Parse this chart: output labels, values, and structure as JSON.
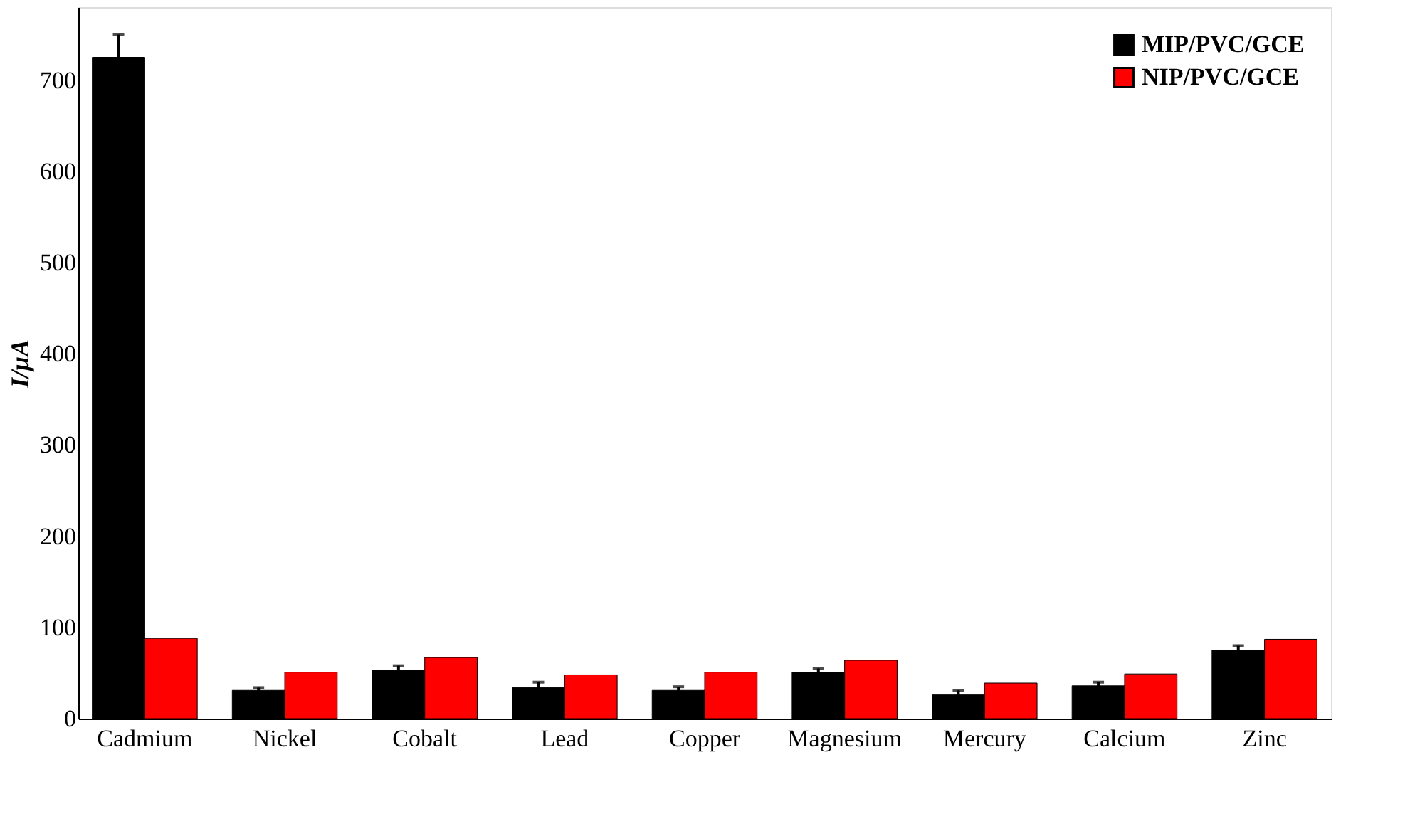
{
  "chart_data": {
    "type": "bar",
    "ylabel": "I/μA",
    "categories": [
      "Cadmium",
      "Nickel",
      "Cobalt",
      "Lead",
      "Copper",
      "Magnesium",
      "Mercury",
      "Calcium",
      "Zinc"
    ],
    "series": [
      {
        "name": "MIP/PVC/GCE",
        "color": "#000000",
        "values": [
          725,
          31,
          53,
          34,
          31,
          51,
          26,
          36,
          75
        ],
        "errors": [
          25,
          3,
          5,
          6,
          4,
          4,
          5,
          4,
          5
        ]
      },
      {
        "name": "NIP/PVC/GCE",
        "color": "#ff0000",
        "values": [
          88,
          51,
          67,
          48,
          51,
          64,
          39,
          49,
          87
        ]
      }
    ],
    "ylim": [
      0,
      780
    ],
    "yticks": [
      0,
      100,
      200,
      300,
      400,
      500,
      600,
      700
    ],
    "grid": false,
    "legend": "top right"
  }
}
